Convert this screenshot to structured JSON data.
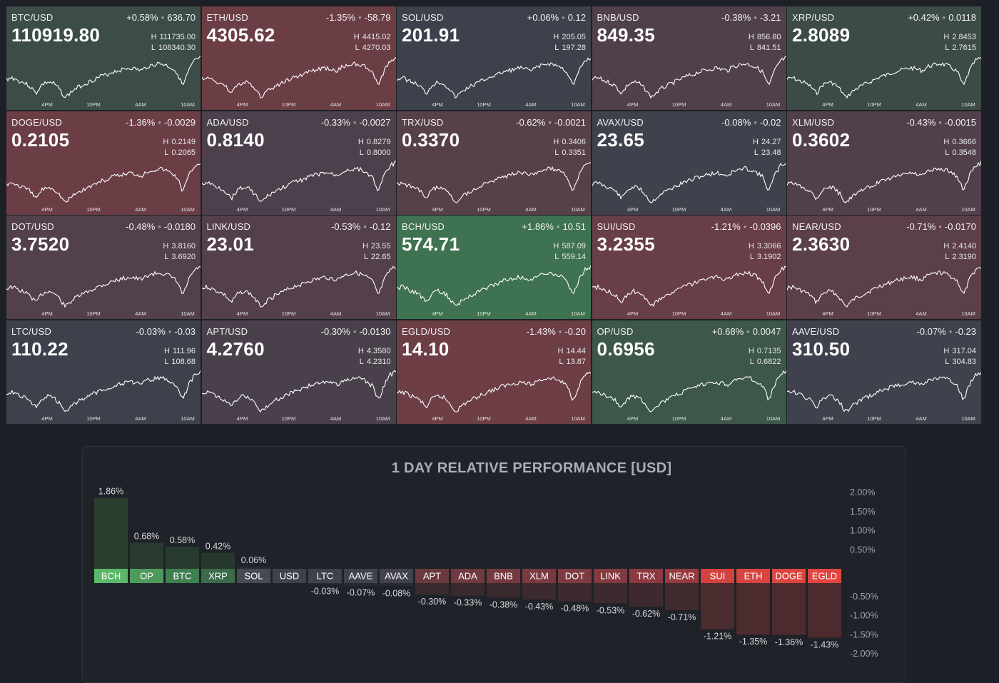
{
  "tiles": [
    {
      "pair": "BTC/USD",
      "change_pct": "+0.58%",
      "change_abs": "636.70",
      "price": "110919.80",
      "high": "111735.00",
      "low": "108340.30",
      "bg": "#3c4d48"
    },
    {
      "pair": "ETH/USD",
      "change_pct": "-1.35%",
      "change_abs": "-58.79",
      "price": "4305.62",
      "high": "4415.02",
      "low": "4270.03",
      "bg": "#6b3e46"
    },
    {
      "pair": "SOL/USD",
      "change_pct": "+0.06%",
      "change_abs": "0.12",
      "price": "201.91",
      "high": "205.05",
      "low": "197.28",
      "bg": "#3d414b"
    },
    {
      "pair": "BNB/USD",
      "change_pct": "-0.38%",
      "change_abs": "-3.21",
      "price": "849.35",
      "high": "856.80",
      "low": "841.51",
      "bg": "#50404c"
    },
    {
      "pair": "XRP/USD",
      "change_pct": "+0.42%",
      "change_abs": "0.0118",
      "price": "2.8089",
      "high": "2.8453",
      "low": "2.7615",
      "bg": "#3d4b47"
    },
    {
      "pair": "DOGE/USD",
      "change_pct": "-1.36%",
      "change_abs": "-0.0029",
      "price": "0.2105",
      "high": "0.2149",
      "low": "0.2065",
      "bg": "#6b3e46"
    },
    {
      "pair": "ADA/USD",
      "change_pct": "-0.33%",
      "change_abs": "-0.0027",
      "price": "0.8140",
      "high": "0.8279",
      "low": "0.8000",
      "bg": "#4b404c"
    },
    {
      "pair": "TRX/USD",
      "change_pct": "-0.62%",
      "change_abs": "-0.0021",
      "price": "0.3370",
      "high": "0.3406",
      "low": "0.3351",
      "bg": "#56404a"
    },
    {
      "pair": "AVAX/USD",
      "change_pct": "-0.08%",
      "change_abs": "-0.02",
      "price": "23.65",
      "high": "24.27",
      "low": "23.48",
      "bg": "#3f424c"
    },
    {
      "pair": "XLM/USD",
      "change_pct": "-0.43%",
      "change_abs": "-0.0015",
      "price": "0.3602",
      "high": "0.3666",
      "low": "0.3548",
      "bg": "#51404c"
    },
    {
      "pair": "DOT/USD",
      "change_pct": "-0.48%",
      "change_abs": "-0.0180",
      "price": "3.7520",
      "high": "3.8160",
      "low": "3.6920",
      "bg": "#52404b"
    },
    {
      "pair": "LINK/USD",
      "change_pct": "-0.53%",
      "change_abs": "-0.12",
      "price": "23.01",
      "high": "23.55",
      "low": "22.65",
      "bg": "#54404b"
    },
    {
      "pair": "BCH/USD",
      "change_pct": "+1.86%",
      "change_abs": "10.51",
      "price": "574.71",
      "high": "587.09",
      "low": "559.14",
      "bg": "#3f7250"
    },
    {
      "pair": "SUI/USD",
      "change_pct": "-1.21%",
      "change_abs": "-0.0396",
      "price": "3.2355",
      "high": "3.3066",
      "low": "3.1902",
      "bg": "#683e47"
    },
    {
      "pair": "NEAR/USD",
      "change_pct": "-0.71%",
      "change_abs": "-0.0170",
      "price": "2.3630",
      "high": "2.4140",
      "low": "2.3190",
      "bg": "#5b3f49"
    },
    {
      "pair": "LTC/USD",
      "change_pct": "-0.03%",
      "change_abs": "-0.03",
      "price": "110.22",
      "high": "111.96",
      "low": "108.68",
      "bg": "#3d414b"
    },
    {
      "pair": "APT/USD",
      "change_pct": "-0.30%",
      "change_abs": "-0.0130",
      "price": "4.2760",
      "high": "4.3580",
      "low": "4.2310",
      "bg": "#4a404c"
    },
    {
      "pair": "EGLD/USD",
      "change_pct": "-1.43%",
      "change_abs": "-0.20",
      "price": "14.10",
      "high": "14.44",
      "low": "13.87",
      "bg": "#6d3e46"
    },
    {
      "pair": "OP/USD",
      "change_pct": "+0.68%",
      "change_abs": "0.0047",
      "price": "0.6956",
      "high": "0.7135",
      "low": "0.6822",
      "bg": "#3d5749"
    },
    {
      "pair": "AAVE/USD",
      "change_pct": "-0.07%",
      "change_abs": "-0.23",
      "price": "310.50",
      "high": "317.04",
      "low": "304.83",
      "bg": "#3f424c"
    }
  ],
  "labels": {
    "high_key": "H",
    "low_key": "L"
  },
  "time_ticks": [
    "4PM",
    "10PM",
    "4AM",
    "10AM"
  ],
  "chart_data": {
    "type": "bar",
    "title": "1 DAY RELATIVE PERFORMANCE  [USD]",
    "categories": [
      "BCH",
      "OP",
      "BTC",
      "XRP",
      "SOL",
      "USD",
      "LTC",
      "AAVE",
      "AVAX",
      "APT",
      "ADA",
      "BNB",
      "XLM",
      "DOT",
      "LINK",
      "TRX",
      "NEAR",
      "SUI",
      "ETH",
      "DOGE",
      "EGLD"
    ],
    "values": [
      1.86,
      0.68,
      0.58,
      0.42,
      0.06,
      0,
      -0.03,
      -0.07,
      -0.08,
      -0.3,
      -0.33,
      -0.38,
      -0.43,
      -0.48,
      -0.53,
      -0.62,
      -0.71,
      -1.21,
      -1.35,
      -1.36,
      -1.43
    ],
    "value_labels": [
      "1.86%",
      "0.68%",
      "0.58%",
      "0.42%",
      "0.06%",
      "",
      "-0.03%",
      "-0.07%",
      "-0.08%",
      "-0.30%",
      "-0.33%",
      "-0.38%",
      "-0.43%",
      "-0.48%",
      "-0.53%",
      "-0.62%",
      "-0.71%",
      "-1.21%",
      "-1.35%",
      "-1.36%",
      "-1.43%"
    ],
    "label_colors": [
      "#5cb868",
      "#4e9a5b",
      "#3f8050",
      "#3b6b4a",
      "#454a54",
      "#3e424c",
      "#3f424c",
      "#40424c",
      "#42424c",
      "#6b3a40",
      "#6f3a40",
      "#743a40",
      "#793a40",
      "#7d3a40",
      "#823a40",
      "#8a3a40",
      "#953a40",
      "#d2433f",
      "#d8443f",
      "#dc453f",
      "#e0463f"
    ],
    "bar_colors": [
      "#2a3f30",
      "#283b2e",
      "#273a2e",
      "#26372d",
      "#282b31",
      "#24272d",
      "#272a30",
      "#272a30",
      "#272a30",
      "#3a2a2e",
      "#3a2a2e",
      "#3b2a2e",
      "#3c2a2e",
      "#3c2a2e",
      "#3d2a2e",
      "#3e2a2e",
      "#3f2a2e",
      "#4a2b2e",
      "#4b2b2e",
      "#4b2b2e",
      "#4c2b2e"
    ],
    "y_ticks_pos": [
      "2.00%",
      "1.50%",
      "1.00%",
      "0.50%"
    ],
    "y_ticks_neg": [
      "-0.50%",
      "-1.00%",
      "-1.50%",
      "-2.00%"
    ],
    "ylim": [
      -2,
      2
    ]
  }
}
